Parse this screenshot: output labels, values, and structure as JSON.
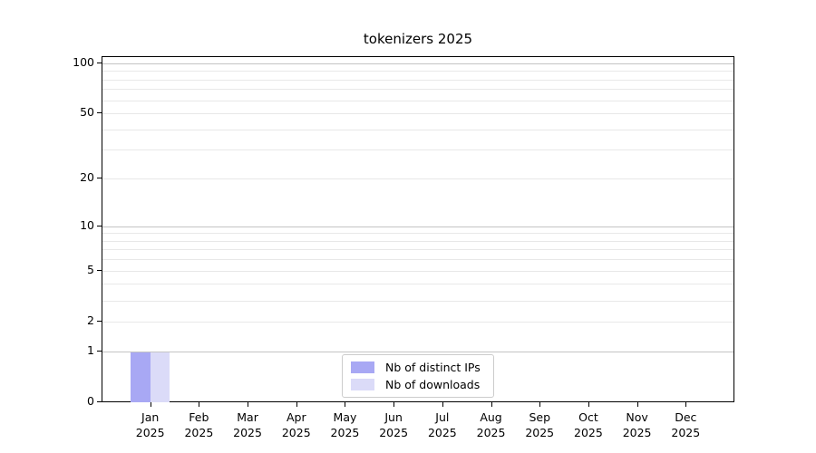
{
  "figure": {
    "background": "#ffffff"
  },
  "chart_data": {
    "type": "bar",
    "title": "tokenizers 2025",
    "categories": [
      "Jan",
      "Feb",
      "Mar",
      "Apr",
      "May",
      "Jun",
      "Jul",
      "Aug",
      "Sep",
      "Oct",
      "Nov",
      "Dec"
    ],
    "tick_year": "2025",
    "series": [
      {
        "name": "Nb of distinct IPs",
        "color": "#a8a8f4",
        "values": [
          1,
          0,
          0,
          0,
          0,
          0,
          0,
          0,
          0,
          0,
          0,
          0
        ]
      },
      {
        "name": "Nb of downloads",
        "color": "#dbdbf8",
        "values": [
          1,
          0,
          0,
          0,
          0,
          0,
          0,
          0,
          0,
          0,
          0,
          0
        ]
      }
    ],
    "yscale": "log1p",
    "ylim": [
      0,
      110
    ],
    "yticks_labeled": [
      0,
      1,
      2,
      5,
      10,
      20,
      50,
      100
    ],
    "ygrid_major": [
      1,
      10,
      100
    ],
    "ygrid_minor": [
      2,
      3,
      4,
      5,
      6,
      7,
      8,
      9,
      20,
      30,
      40,
      50,
      60,
      70,
      80,
      90
    ],
    "grid": "horizontal",
    "legend_position": "lower center",
    "colors": {
      "grid_major": "#c4c4c4",
      "grid_minor": "#e8e8e8",
      "axis": "#000000",
      "text": "#000000",
      "legend_border": "#cccccc"
    }
  }
}
